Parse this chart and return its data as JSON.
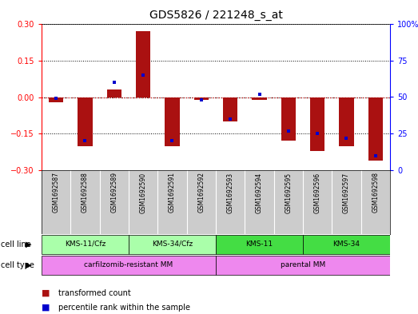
{
  "title": "GDS5826 / 221248_s_at",
  "samples": [
    "GSM1692587",
    "GSM1692588",
    "GSM1692589",
    "GSM1692590",
    "GSM1692591",
    "GSM1692592",
    "GSM1692593",
    "GSM1692594",
    "GSM1692595",
    "GSM1692596",
    "GSM1692597",
    "GSM1692598"
  ],
  "transformed_count": [
    -0.02,
    -0.2,
    0.03,
    0.27,
    -0.2,
    -0.01,
    -0.1,
    -0.01,
    -0.18,
    -0.22,
    -0.2,
    -0.26
  ],
  "percentile_rank": [
    49,
    20,
    60,
    65,
    20,
    48,
    35,
    52,
    27,
    25,
    22,
    10
  ],
  "ylim": [
    -0.3,
    0.3
  ],
  "yticks_left": [
    -0.3,
    -0.15,
    0,
    0.15,
    0.3
  ],
  "yticks_right": [
    0,
    25,
    50,
    75,
    100
  ],
  "bar_color": "#aa1111",
  "dot_color": "#0000cc",
  "hline_color": "#cc2222",
  "bg_color": "#ffffff",
  "gsm_bg": "#cccccc",
  "cl_light": "#aaffaa",
  "cl_dark": "#44dd44",
  "ct_color": "#ee88ee",
  "legend_tc": "transformed count",
  "legend_pr": "percentile rank within the sample",
  "cl_groups": [
    {
      "label": "KMS-11/Cfz",
      "start": 0,
      "end": 2,
      "light": true
    },
    {
      "label": "KMS-34/Cfz",
      "start": 3,
      "end": 5,
      "light": true
    },
    {
      "label": "KMS-11",
      "start": 6,
      "end": 8,
      "light": false
    },
    {
      "label": "KMS-34",
      "start": 9,
      "end": 11,
      "light": false
    }
  ],
  "ct_groups": [
    {
      "label": "carfilzomib-resistant MM",
      "start": 0,
      "end": 5
    },
    {
      "label": "parental MM",
      "start": 6,
      "end": 11
    }
  ]
}
